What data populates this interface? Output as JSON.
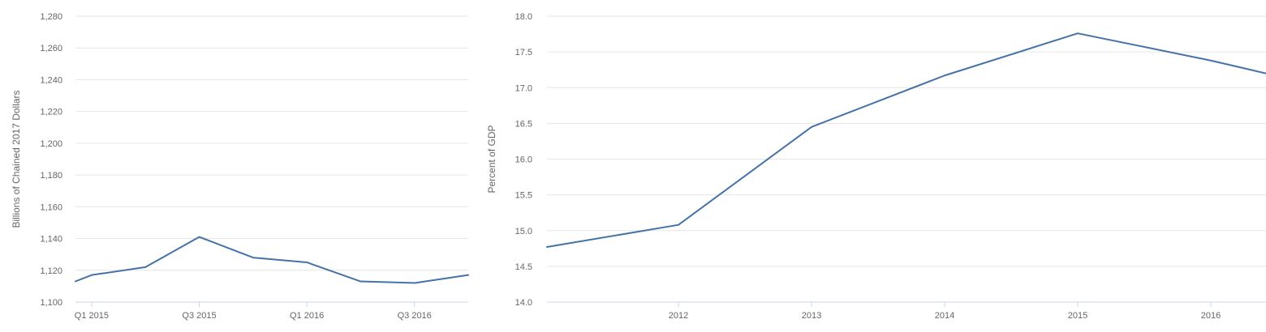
{
  "chart_data": [
    {
      "type": "line",
      "ylabel": "Billions of Chained 2017 Dollars",
      "ylim": [
        1100,
        1280
      ],
      "yticks": [
        1100,
        1120,
        1140,
        1160,
        1180,
        1200,
        1220,
        1240,
        1260,
        1280
      ],
      "ytick_labels": [
        "1,100",
        "1,120",
        "1,140",
        "1,160",
        "1,180",
        "1,200",
        "1,220",
        "1,240",
        "1,260",
        "1,280"
      ],
      "categories": [
        "Q1 2015",
        "Q2 2015",
        "Q3 2015",
        "Q4 2015",
        "Q1 2016",
        "Q2 2016",
        "Q3 2016",
        "Q4 2016"
      ],
      "xtick_labels": [
        "Q1 2015",
        "Q3 2015",
        "Q1 2016",
        "Q3 2016"
      ],
      "series": [
        {
          "values": [
            1117,
            1122,
            1141,
            1128,
            1125,
            1113,
            1112,
            1117
          ],
          "start": 1113
        }
      ],
      "grid": true,
      "line_color": "#4572a7"
    },
    {
      "type": "line",
      "ylabel": "Percent of GDP",
      "ylim": [
        14.0,
        18.0
      ],
      "yticks": [
        14.0,
        14.5,
        15.0,
        15.5,
        16.0,
        16.5,
        17.0,
        17.5,
        18.0
      ],
      "ytick_labels": [
        "14.0",
        "14.5",
        "15.0",
        "15.5",
        "16.0",
        "16.5",
        "17.0",
        "17.5",
        "18.0"
      ],
      "x": [
        2012,
        2013,
        2014,
        2015,
        2016
      ],
      "xtick_labels": [
        "2012",
        "2013",
        "2014",
        "2015",
        "2016"
      ],
      "series": [
        {
          "values": [
            15.08,
            16.45,
            17.17,
            17.76,
            17.38
          ],
          "start": 14.77,
          "end": 17.2
        }
      ],
      "grid": true,
      "line_color": "#4572a7"
    }
  ]
}
